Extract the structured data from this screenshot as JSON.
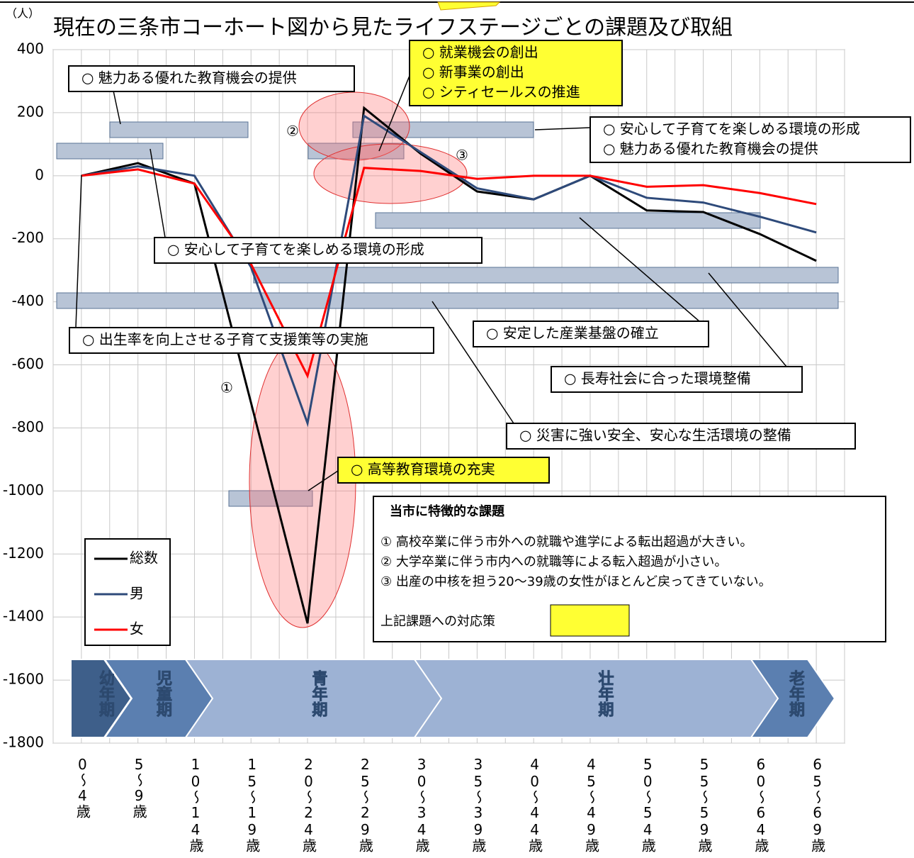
{
  "chart_data": {
    "type": "line",
    "title": "現在の三条市コーホート図から見たライフステージごとの課題及び取組",
    "y_unit": "（人）",
    "categories": [
      "0～4歳",
      "5～9歳",
      "10～14歳",
      "15～19歳",
      "20～24歳",
      "25～29歳",
      "30～34歳",
      "35～39歳",
      "40～44歳",
      "45～49歳",
      "50～54歳",
      "55～59歳",
      "60～64歳",
      "65～69歳"
    ],
    "series": [
      {
        "name": "総数",
        "color": "#000000",
        "values": [
          0,
          40,
          -25,
          -720,
          -1420,
          215,
          70,
          -50,
          -75,
          0,
          -110,
          -115,
          -185,
          -270
        ]
      },
      {
        "name": "男",
        "color": "#2e4a7a",
        "values": [
          0,
          30,
          0,
          -290,
          -785,
          190,
          75,
          -40,
          -75,
          0,
          -70,
          -85,
          -130,
          -180
        ]
      },
      {
        "name": "女",
        "color": "#ff0000",
        "values": [
          0,
          20,
          -25,
          -280,
          -635,
          25,
          15,
          -10,
          0,
          0,
          -35,
          -30,
          -55,
          -90
        ]
      }
    ],
    "ylim": [
      -1800,
      400
    ],
    "yticks": [
      400,
      200,
      0,
      -200,
      -400,
      -600,
      -800,
      -1000,
      -1200,
      -1400,
      -1600,
      -1800
    ],
    "grid": true,
    "annotations": [
      {
        "lines": [
          "○ 魅力ある優れた教育機会の提供"
        ]
      },
      {
        "lines": [
          "○ 就業機会の創出",
          "○ 新事業の創出",
          "○ シティセールスの推進"
        ]
      },
      {
        "lines": [
          "○ 安心して子育てを楽しめる環境の形成",
          "○ 魅力ある優れた教育機会の提供"
        ]
      },
      {
        "lines": [
          "○ 安心して子育てを楽しめる環境の形成"
        ]
      },
      {
        "lines": [
          "○ 出生率を向上させる子育て支援策等の実施"
        ]
      },
      {
        "lines": [
          "○ 安定した産業基盤の確立"
        ]
      },
      {
        "lines": [
          "○ 長寿社会に合った環境整備"
        ]
      },
      {
        "lines": [
          "○ 災害に強い安全、安心な生活環境の整備"
        ]
      },
      {
        "lines": [
          "○ 高等教育環境の充実"
        ]
      }
    ],
    "markers": [
      "①",
      "②",
      "③"
    ],
    "challenges": {
      "title": "当市に特徴的な課題",
      "items": [
        "① 高校卒業に伴う市外への就職や進学による転出超過が大きい。",
        "② 大学卒業に伴う市内への就職等による転入超過が小さい。",
        "③ 出産の中核を担う20～39歳の女性がほとんど戻ってきていない。"
      ],
      "response": "上記課題への対応策"
    },
    "life_stages": [
      "幼年期",
      "児童期",
      "青年期",
      "壮年期",
      "老年期"
    ]
  }
}
